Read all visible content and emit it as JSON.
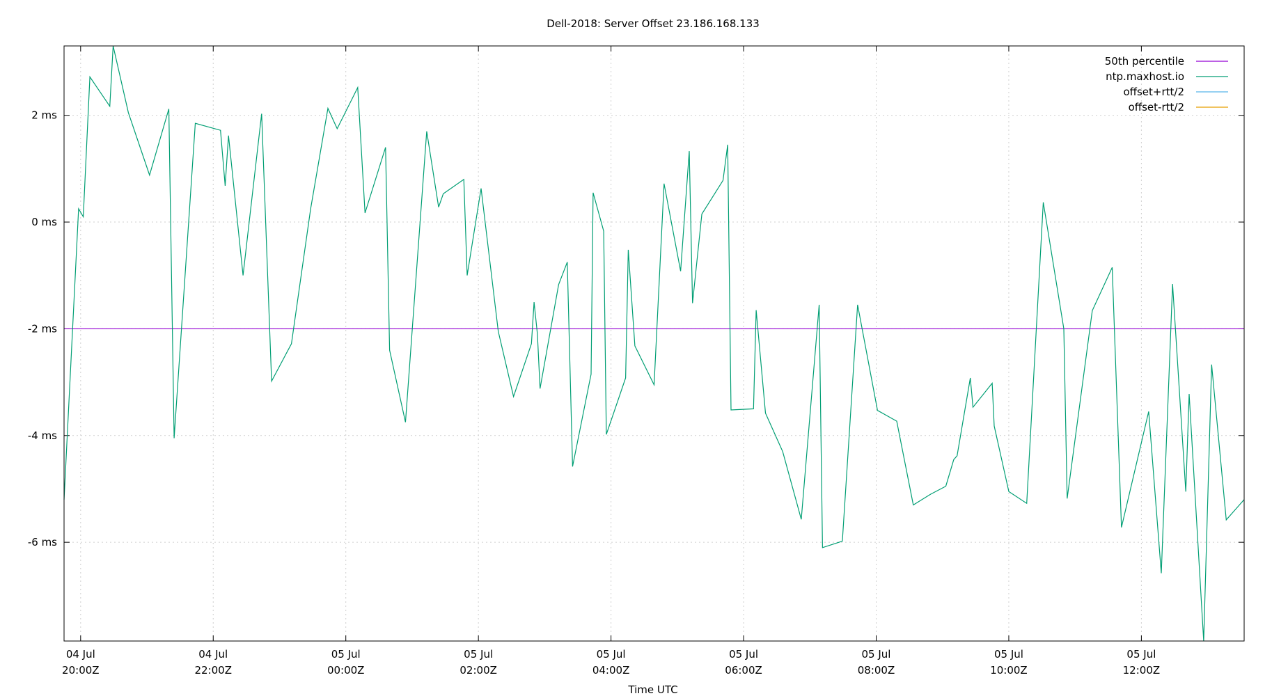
{
  "chart_data": {
    "type": "line",
    "title": "Dell-2018: Server Offset 23.186.168.133",
    "xlabel": "Time UTC",
    "ylabel": "",
    "x_unit": "hours since 04 Jul 20:00Z",
    "xlim": [
      -0.25,
      17.55
    ],
    "ylim": [
      -7.85,
      3.3
    ],
    "x_ticks": [
      {
        "x": 0,
        "line1": "04 Jul",
        "line2": "20:00Z"
      },
      {
        "x": 2,
        "line1": "04 Jul",
        "line2": "22:00Z"
      },
      {
        "x": 4,
        "line1": "05 Jul",
        "line2": "00:00Z"
      },
      {
        "x": 6,
        "line1": "05 Jul",
        "line2": "02:00Z"
      },
      {
        "x": 8,
        "line1": "05 Jul",
        "line2": "04:00Z"
      },
      {
        "x": 10,
        "line1": "05 Jul",
        "line2": "06:00Z"
      },
      {
        "x": 12,
        "line1": "05 Jul",
        "line2": "08:00Z"
      },
      {
        "x": 14,
        "line1": "05 Jul",
        "line2": "10:00Z"
      },
      {
        "x": 16,
        "line1": "05 Jul",
        "line2": "12:00Z"
      }
    ],
    "y_ticks": [
      {
        "y": 2,
        "label": "2 ms"
      },
      {
        "y": 0,
        "label": "0 ms"
      },
      {
        "y": -2,
        "label": "-2 ms"
      },
      {
        "y": -4,
        "label": "-4 ms"
      },
      {
        "y": -6,
        "label": "-6 ms"
      }
    ],
    "grid": true,
    "legend_position": "top-right",
    "series": [
      {
        "name": "50th percentile",
        "color": "#9400d3",
        "kind": "hline",
        "y": -2.0
      },
      {
        "name": "ntp.maxhost.io",
        "color": "#009e73",
        "kind": "line",
        "points": [
          [
            -0.25,
            -5.2
          ],
          [
            -0.03,
            0.25
          ],
          [
            0.04,
            0.1
          ],
          [
            0.14,
            2.72
          ],
          [
            0.44,
            2.17
          ],
          [
            0.49,
            3.3
          ],
          [
            0.72,
            2.05
          ],
          [
            1.04,
            0.88
          ],
          [
            1.33,
            2.12
          ],
          [
            1.41,
            -4.05
          ],
          [
            1.73,
            1.85
          ],
          [
            2.11,
            1.72
          ],
          [
            2.18,
            0.68
          ],
          [
            2.23,
            1.62
          ],
          [
            2.45,
            -1.0
          ],
          [
            2.73,
            2.03
          ],
          [
            2.88,
            -2.98
          ],
          [
            3.18,
            -2.28
          ],
          [
            3.47,
            0.25
          ],
          [
            3.73,
            2.13
          ],
          [
            3.87,
            1.75
          ],
          [
            4.18,
            2.52
          ],
          [
            4.29,
            0.17
          ],
          [
            4.6,
            1.4
          ],
          [
            4.66,
            -2.4
          ],
          [
            4.9,
            -3.75
          ],
          [
            5.22,
            1.7
          ],
          [
            5.4,
            0.28
          ],
          [
            5.47,
            0.53
          ],
          [
            5.78,
            0.8
          ],
          [
            5.83,
            -1.0
          ],
          [
            6.04,
            0.63
          ],
          [
            6.3,
            -2.05
          ],
          [
            6.53,
            -3.27
          ],
          [
            6.8,
            -2.28
          ],
          [
            6.84,
            -1.5
          ],
          [
            6.89,
            -2.1
          ],
          [
            6.93,
            -3.12
          ],
          [
            7.21,
            -1.17
          ],
          [
            7.34,
            -0.75
          ],
          [
            7.42,
            -4.58
          ],
          [
            7.7,
            -2.85
          ],
          [
            7.73,
            0.55
          ],
          [
            7.89,
            -0.17
          ],
          [
            7.93,
            -3.98
          ],
          [
            8.22,
            -2.92
          ],
          [
            8.26,
            -0.52
          ],
          [
            8.36,
            -2.32
          ],
          [
            8.65,
            -3.05
          ],
          [
            8.8,
            0.72
          ],
          [
            9.05,
            -0.92
          ],
          [
            9.18,
            1.33
          ],
          [
            9.23,
            -1.52
          ],
          [
            9.37,
            0.15
          ],
          [
            9.69,
            0.78
          ],
          [
            9.76,
            1.45
          ],
          [
            9.81,
            -3.52
          ],
          [
            10.15,
            -3.5
          ],
          [
            10.19,
            -1.65
          ],
          [
            10.33,
            -3.58
          ],
          [
            10.59,
            -4.3
          ],
          [
            10.87,
            -5.57
          ],
          [
            11.14,
            -1.55
          ],
          [
            11.19,
            -6.1
          ],
          [
            11.49,
            -5.98
          ],
          [
            11.72,
            -1.55
          ],
          [
            12.02,
            -3.53
          ],
          [
            12.31,
            -3.73
          ],
          [
            12.56,
            -5.3
          ],
          [
            12.82,
            -5.1
          ],
          [
            13.05,
            -4.95
          ],
          [
            13.17,
            -4.45
          ],
          [
            13.22,
            -4.38
          ],
          [
            13.42,
            -2.92
          ],
          [
            13.46,
            -3.47
          ],
          [
            13.75,
            -3.02
          ],
          [
            13.78,
            -3.82
          ],
          [
            14.0,
            -5.05
          ],
          [
            14.27,
            -5.27
          ],
          [
            14.52,
            0.37
          ],
          [
            14.83,
            -2.0
          ],
          [
            14.88,
            -5.18
          ],
          [
            15.26,
            -1.66
          ],
          [
            15.56,
            -0.85
          ],
          [
            15.7,
            -5.72
          ],
          [
            16.11,
            -3.55
          ],
          [
            16.3,
            -6.58
          ],
          [
            16.47,
            -1.16
          ],
          [
            16.67,
            -5.05
          ],
          [
            16.72,
            -3.22
          ],
          [
            16.94,
            -7.85
          ],
          [
            17.06,
            -2.67
          ],
          [
            17.28,
            -5.58
          ],
          [
            17.55,
            -5.2
          ]
        ]
      },
      {
        "name": "offset+rtt/2",
        "color": "#56b4e9",
        "kind": "none"
      },
      {
        "name": "offset-rtt/2",
        "color": "#e69f00",
        "kind": "none"
      }
    ]
  }
}
